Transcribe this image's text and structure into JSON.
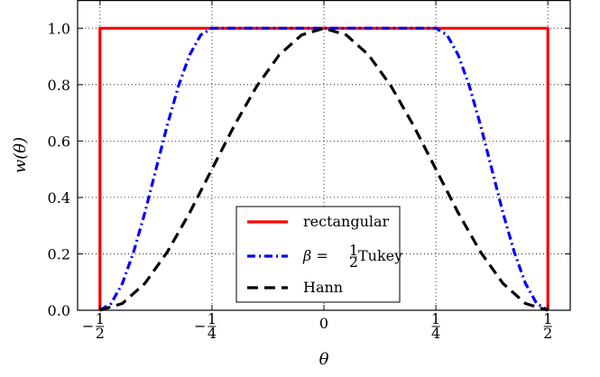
{
  "chart_data": {
    "type": "line",
    "title": "",
    "xlabel": "θ",
    "ylabel": "w(θ)",
    "xlim": [
      -0.55,
      0.55
    ],
    "ylim": [
      0.0,
      1.1
    ],
    "grid": true,
    "legend_position": "bottom-center",
    "x_ticks": [
      {
        "value": -0.5,
        "sign": "−",
        "num": "1",
        "den": "2"
      },
      {
        "value": -0.25,
        "sign": "−",
        "num": "1",
        "den": "4"
      },
      {
        "value": 0,
        "text": "0"
      },
      {
        "value": 0.25,
        "sign": "",
        "num": "1",
        "den": "4"
      },
      {
        "value": 0.5,
        "sign": "",
        "num": "1",
        "den": "2"
      }
    ],
    "y_ticks": [
      {
        "value": 0.0,
        "text": "0.0"
      },
      {
        "value": 0.2,
        "text": "0.2"
      },
      {
        "value": 0.4,
        "text": "0.4"
      },
      {
        "value": 0.6,
        "text": "0.6"
      },
      {
        "value": 0.8,
        "text": "0.8"
      },
      {
        "value": 1.0,
        "text": "1.0"
      }
    ],
    "series": [
      {
        "name": "rectangular",
        "legend_text": "rectangular",
        "color": "#ff0000",
        "style": "solid",
        "x": [
          -0.5,
          -0.5,
          0.5,
          0.5
        ],
        "y": [
          0.0,
          1.0,
          1.0,
          0.0
        ]
      },
      {
        "name": "β = ½ Tukey",
        "legend_prefix": "β = ",
        "legend_frac_num": "1",
        "legend_frac_den": "2",
        "legend_suffix": " Tukey",
        "color": "#0000ff",
        "style": "dashdot",
        "x": [
          -0.5,
          -0.475,
          -0.45,
          -0.425,
          -0.4,
          -0.375,
          -0.35,
          -0.325,
          -0.3,
          -0.275,
          -0.25,
          0.0,
          0.25,
          0.275,
          0.3,
          0.325,
          0.35,
          0.375,
          0.4,
          0.425,
          0.45,
          0.475,
          0.5
        ],
        "y": [
          0.0,
          0.024,
          0.095,
          0.206,
          0.345,
          0.5,
          0.655,
          0.794,
          0.905,
          0.976,
          1.0,
          1.0,
          1.0,
          0.976,
          0.905,
          0.794,
          0.655,
          0.5,
          0.345,
          0.206,
          0.095,
          0.024,
          0.0
        ]
      },
      {
        "name": "Hann",
        "legend_text": "Hann",
        "color": "#000000",
        "style": "dashed",
        "x": [
          -0.5,
          -0.45,
          -0.4,
          -0.35,
          -0.3,
          -0.25,
          -0.2,
          -0.15,
          -0.1,
          -0.05,
          0.0,
          0.05,
          0.1,
          0.15,
          0.2,
          0.25,
          0.3,
          0.35,
          0.4,
          0.45,
          0.5
        ],
        "y": [
          0.0,
          0.024,
          0.095,
          0.206,
          0.345,
          0.5,
          0.655,
          0.794,
          0.905,
          0.976,
          1.0,
          0.976,
          0.905,
          0.794,
          0.655,
          0.5,
          0.345,
          0.206,
          0.095,
          0.024,
          0.0
        ]
      }
    ]
  }
}
